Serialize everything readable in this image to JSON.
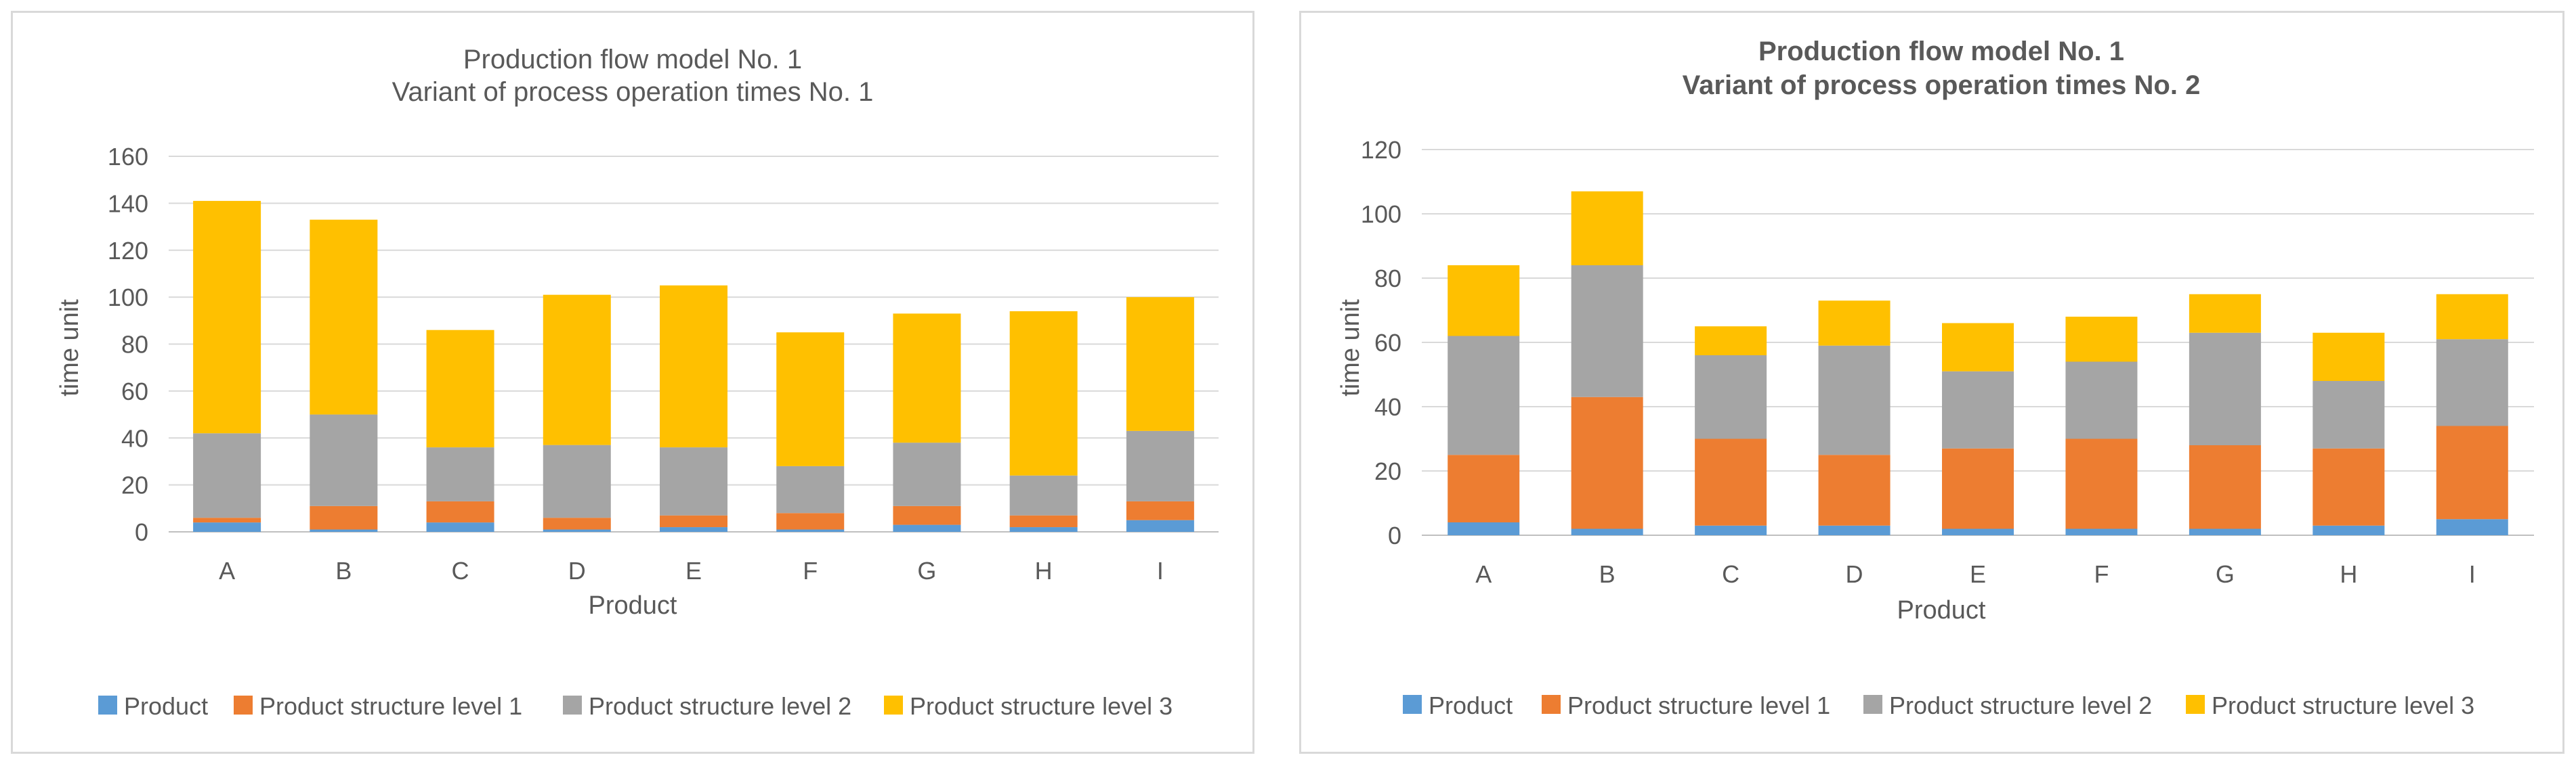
{
  "chart_data": [
    {
      "type": "bar",
      "stacked": true,
      "title_lines": [
        "Production flow model No. 1",
        "Variant of process operation times  No. 1"
      ],
      "xlabel": "Product",
      "ylabel": "time  unit",
      "ylim": [
        0,
        160
      ],
      "yticks": [
        0,
        20,
        40,
        60,
        80,
        100,
        120,
        140,
        160
      ],
      "grid": true,
      "legend": "bottom",
      "categories": [
        "A",
        "B",
        "C",
        "D",
        "E",
        "F",
        "G",
        "H",
        "I"
      ],
      "series": [
        {
          "name": "Product",
          "color": "#5b9bd5",
          "values": [
            4,
            1,
            4,
            1,
            2,
            1,
            3,
            2,
            5
          ]
        },
        {
          "name": "Product structure level 1",
          "color": "#ed7d31",
          "values": [
            2,
            10,
            9,
            5,
            5,
            7,
            8,
            5,
            8
          ]
        },
        {
          "name": "Product structure level 2",
          "color": "#a5a5a5",
          "values": [
            36,
            39,
            23,
            31,
            29,
            20,
            27,
            17,
            30
          ]
        },
        {
          "name": "Product structure level 3",
          "color": "#ffc000",
          "values": [
            99,
            83,
            50,
            64,
            69,
            57,
            55,
            70,
            57
          ]
        }
      ]
    },
    {
      "type": "bar",
      "stacked": true,
      "title_lines": [
        "Production flow model No. 1",
        "Variant of process operation times  No. 2"
      ],
      "xlabel": "Product",
      "ylabel": "time  unit",
      "ylim": [
        0,
        120
      ],
      "yticks": [
        0,
        20,
        40,
        60,
        80,
        100,
        120
      ],
      "grid": true,
      "legend": "bottom",
      "categories": [
        "A",
        "B",
        "C",
        "D",
        "E",
        "F",
        "G",
        "H",
        "I"
      ],
      "series": [
        {
          "name": "Product",
          "color": "#5b9bd5",
          "values": [
            4,
            2,
            3,
            3,
            2,
            2,
            2,
            3,
            5
          ]
        },
        {
          "name": "Product structure level 1",
          "color": "#ed7d31",
          "values": [
            21,
            41,
            27,
            22,
            25,
            28,
            26,
            24,
            29
          ]
        },
        {
          "name": "Product structure level 2",
          "color": "#a5a5a5",
          "values": [
            37,
            41,
            26,
            34,
            24,
            24,
            35,
            21,
            27
          ]
        },
        {
          "name": "Product structure level 3",
          "color": "#ffc000",
          "values": [
            22,
            23,
            9,
            14,
            15,
            14,
            12,
            15,
            14
          ]
        }
      ]
    }
  ]
}
